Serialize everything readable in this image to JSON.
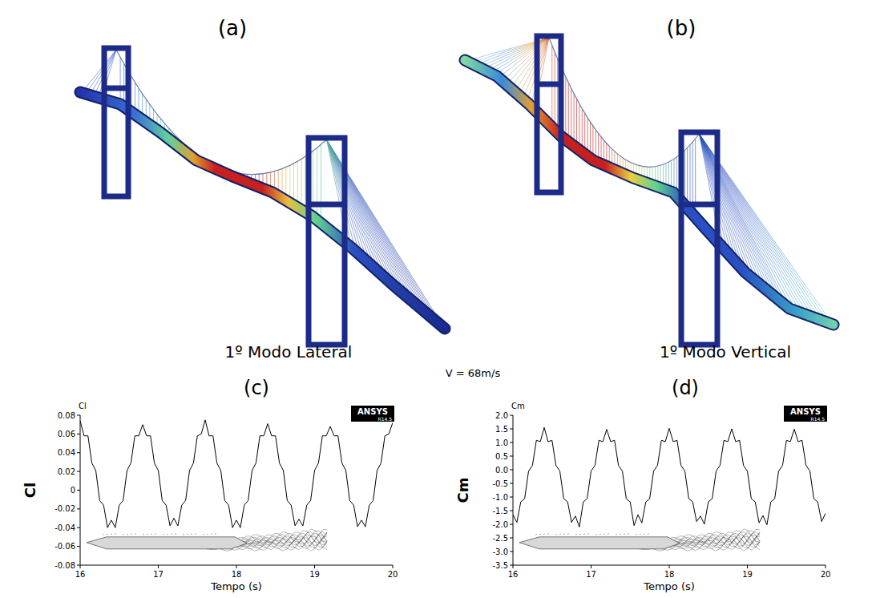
{
  "figure": {
    "panels": [
      {
        "letter": "(a)",
        "caption": "1º Modo Lateral"
      },
      {
        "letter": "(b)",
        "caption": "1º Modo Vertical"
      }
    ],
    "velocity": "V = 68m/s"
  },
  "chart_data": [
    {
      "type": "line",
      "title": "(c)",
      "xlabel": "Tempo (s)",
      "ylabel": "Cl",
      "annotations": [
        "Cl",
        "ANSYS",
        "R14.5"
      ],
      "x": [
        16,
        16.05,
        16.1,
        16.15,
        16.2,
        16.25,
        16.3,
        16.35,
        16.4,
        16.45,
        16.5,
        16.55,
        16.6,
        16.65,
        16.7,
        16.75,
        16.8,
        16.85,
        16.9,
        16.95,
        17,
        17.05,
        17.1,
        17.15,
        17.2,
        17.25,
        17.3,
        17.35,
        17.4,
        17.45,
        17.5,
        17.55,
        17.6,
        17.65,
        17.7,
        17.75,
        17.8,
        17.85,
        17.9,
        17.95,
        18,
        18.05,
        18.1,
        18.15,
        18.2,
        18.25,
        18.3,
        18.35,
        18.4,
        18.45,
        18.5,
        18.55,
        18.6,
        18.65,
        18.7,
        18.75,
        18.8,
        18.85,
        18.9,
        18.95,
        19,
        19.05,
        19.1,
        19.15,
        19.2,
        19.25,
        19.3,
        19.35,
        19.4,
        19.45,
        19.5,
        19.55,
        19.6,
        19.65,
        19.7,
        19.75,
        19.8,
        19.85,
        19.9,
        19.95,
        20
      ],
      "series": [
        {
          "color": "#000000",
          "values": [
            0.074,
            0.058,
            0.058,
            0.029,
            0.021,
            -0.011,
            -0.016,
            -0.04,
            -0.032,
            -0.04,
            -0.016,
            -0.011,
            0.021,
            0.029,
            0.058,
            0.058,
            0.07,
            0.058,
            0.058,
            0.029,
            0.021,
            -0.011,
            -0.016,
            -0.038,
            -0.03,
            -0.038,
            -0.016,
            -0.011,
            0.021,
            0.029,
            0.058,
            0.06,
            0.075,
            0.058,
            0.058,
            0.029,
            0.021,
            -0.011,
            -0.016,
            -0.04,
            -0.032,
            -0.04,
            -0.016,
            -0.011,
            0.021,
            0.029,
            0.058,
            0.058,
            0.071,
            0.058,
            0.058,
            0.029,
            0.021,
            -0.011,
            -0.016,
            -0.038,
            -0.031,
            -0.038,
            -0.016,
            -0.011,
            0.021,
            0.029,
            0.058,
            0.058,
            0.068,
            0.058,
            0.058,
            0.029,
            0.021,
            -0.011,
            -0.016,
            -0.039,
            -0.032,
            -0.039,
            -0.016,
            -0.011,
            0.021,
            0.029,
            0.058,
            0.06,
            0.072
          ]
        }
      ],
      "xlim": [
        16,
        20
      ],
      "xticks": [
        16,
        17,
        18,
        19,
        20
      ],
      "ylim": [
        -0.08,
        0.08
      ],
      "yticks": [
        -0.08,
        -0.06,
        -0.04,
        -0.02,
        0,
        0.02,
        0.04,
        0.06,
        0.08
      ],
      "grid": false
    },
    {
      "type": "line",
      "title": "(d)",
      "xlabel": "Tempo (s)",
      "ylabel": "Cm",
      "annotations": [
        "Cm",
        "ANSYS",
        "R14.5"
      ],
      "x": [
        16,
        16.05,
        16.1,
        16.15,
        16.2,
        16.25,
        16.3,
        16.35,
        16.4,
        16.45,
        16.5,
        16.55,
        16.6,
        16.65,
        16.7,
        16.75,
        16.8,
        16.85,
        16.9,
        16.95,
        17,
        17.05,
        17.1,
        17.15,
        17.2,
        17.25,
        17.3,
        17.35,
        17.4,
        17.45,
        17.5,
        17.55,
        17.6,
        17.65,
        17.7,
        17.75,
        17.8,
        17.85,
        17.9,
        17.95,
        18,
        18.05,
        18.1,
        18.15,
        18.2,
        18.25,
        18.3,
        18.35,
        18.4,
        18.45,
        18.5,
        18.55,
        18.6,
        18.65,
        18.7,
        18.75,
        18.8,
        18.85,
        18.9,
        18.95,
        19,
        19.05,
        19.1,
        19.15,
        19.2,
        19.25,
        19.3,
        19.35,
        19.4,
        19.45,
        19.5,
        19.55,
        19.6,
        19.65,
        19.7,
        19.75,
        19.8,
        19.85,
        19.9,
        19.95,
        20
      ],
      "series": [
        {
          "color": "#000000",
          "values": [
            -1.65,
            -1.93,
            -1.18,
            -1.06,
            -0.05,
            0.16,
            1.08,
            1.03,
            1.55,
            1.03,
            1.08,
            0.16,
            -0.05,
            -1.06,
            -1.18,
            -1.93,
            -1.7,
            -2.1,
            -1.18,
            -1.06,
            -0.05,
            0.16,
            1.08,
            1.03,
            1.48,
            1.03,
            1.08,
            0.16,
            -0.05,
            -1.06,
            -1.18,
            -2.05,
            -1.65,
            -1.95,
            -1.18,
            -1.06,
            -0.05,
            0.16,
            1.08,
            1.03,
            1.52,
            1.03,
            1.08,
            0.16,
            -0.05,
            -1.06,
            -1.18,
            -1.9,
            -1.7,
            -2,
            -1.18,
            -1.06,
            -0.05,
            0.16,
            1.08,
            1.03,
            1.5,
            1.03,
            1.08,
            0.16,
            -0.05,
            -1.06,
            -1.18,
            -1.95,
            -1.68,
            -2.02,
            -1.18,
            -1.06,
            -0.05,
            0.16,
            1.08,
            1.03,
            1.49,
            1.03,
            1.08,
            0.16,
            -0.05,
            -1.06,
            -1.18,
            -1.9,
            -1.6
          ]
        }
      ],
      "xlim": [
        16,
        20
      ],
      "xticks": [
        16,
        17,
        18,
        19,
        20
      ],
      "ylim": [
        -3.5,
        2
      ],
      "yticks": [
        -3.5,
        {
          "value": -3,
          "label": "-3.0"
        },
        -2.5,
        {
          "value": -2,
          "label": "-2.0"
        },
        -1.5,
        {
          "value": -1,
          "label": "-1.0"
        },
        -0.5,
        {
          "value": 0,
          "label": "0.0"
        },
        0.5,
        {
          "value": 1,
          "label": "1.0"
        },
        1.5,
        {
          "value": 2,
          "label": "2.0"
        }
      ],
      "grid": false
    }
  ]
}
